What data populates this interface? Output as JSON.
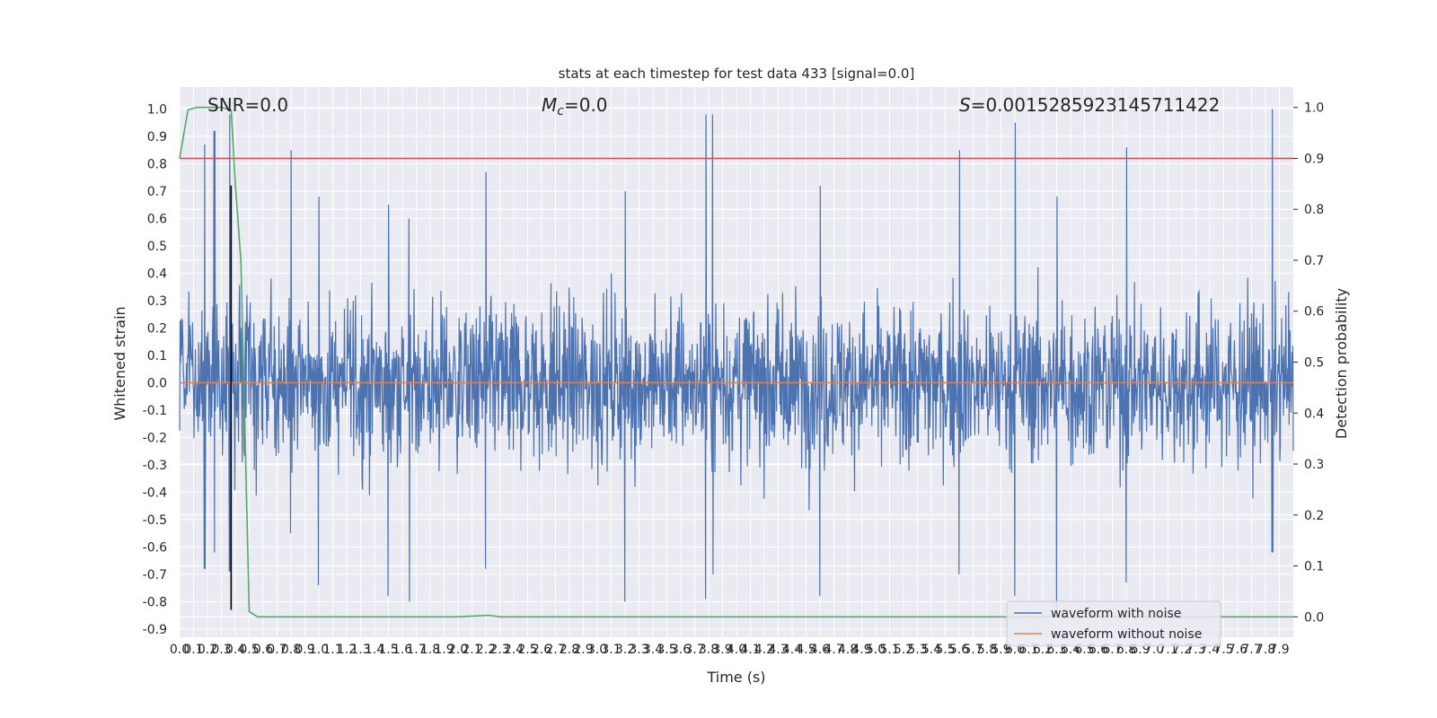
{
  "chart_data": {
    "type": "line",
    "title": "stats at each timestep for test data 433 [signal=0.0]",
    "xlabel": "Time (s)",
    "ylabel": "Whitened strain",
    "y2label": "Detection probability",
    "xlim": [
      0,
      8.0
    ],
    "ylim": [
      -0.93,
      1.08
    ],
    "y2lim": [
      -0.04,
      1.04
    ],
    "x_ticks": [
      0.0,
      0.1,
      0.2,
      0.3,
      0.4,
      0.5,
      0.6,
      0.7,
      0.8,
      0.9,
      1.0,
      1.1,
      1.2,
      1.3,
      1.4,
      1.5,
      1.6,
      1.7,
      1.8,
      1.9,
      2.0,
      2.1,
      2.2,
      2.3,
      2.4,
      2.5,
      2.6,
      2.7,
      2.8,
      2.9,
      3.0,
      3.1,
      3.2,
      3.3,
      3.4,
      3.5,
      3.6,
      3.7,
      3.8,
      3.9,
      4.0,
      4.1,
      4.2,
      4.3,
      4.4,
      4.5,
      4.6,
      4.7,
      4.8,
      4.9,
      5.0,
      5.1,
      5.2,
      5.3,
      5.4,
      5.5,
      5.6,
      5.7,
      5.8,
      5.9,
      6.0,
      6.1,
      6.2,
      6.3,
      6.4,
      6.5,
      6.6,
      6.7,
      6.8,
      6.9,
      7.0,
      7.1,
      7.2,
      7.3,
      7.4,
      7.5,
      7.6,
      7.7,
      7.8,
      7.9
    ],
    "y_ticks": [
      -0.9,
      -0.8,
      -0.7,
      -0.6,
      -0.5,
      -0.4,
      -0.3,
      -0.2,
      -0.1,
      0.0,
      0.1,
      0.2,
      0.3,
      0.4,
      0.5,
      0.6,
      0.7,
      0.8,
      0.9,
      1.0
    ],
    "y2_ticks": [
      0.0,
      0.1,
      0.2,
      0.3,
      0.4,
      0.5,
      0.6,
      0.7,
      0.8,
      0.9,
      1.0
    ],
    "annotations": [
      {
        "text": "SNR=0.0"
      },
      {
        "text_italic": "M",
        "sub": "c",
        "text": "=0.0"
      },
      {
        "text_italic": "S",
        "text": "=0.0015285923145711422"
      }
    ],
    "threshold": {
      "axis": "y2",
      "value": 0.9,
      "color": "#c44e52"
    },
    "vertical_marker": {
      "x": 0.37,
      "y_range": [
        -0.83,
        0.72
      ],
      "color": "#000000"
    },
    "series": [
      {
        "name": "waveform with noise",
        "axis": "y",
        "color": "#4c72b0",
        "note": "dense noise envelope",
        "envelope_peaks": [
          {
            "x": 0.18,
            "max": 0.87,
            "min": -0.68
          },
          {
            "x": 0.25,
            "max": 0.92,
            "min": -0.62
          },
          {
            "x": 0.36,
            "max": 0.98,
            "min": -0.69
          },
          {
            "x": 0.8,
            "max": 0.85,
            "min": -0.55
          },
          {
            "x": 1.0,
            "max": 0.68,
            "min": -0.74
          },
          {
            "x": 1.5,
            "max": 0.65,
            "min": -0.78
          },
          {
            "x": 1.65,
            "max": 0.6,
            "min": -0.8
          },
          {
            "x": 2.2,
            "max": 0.77,
            "min": -0.68
          },
          {
            "x": 3.2,
            "max": 0.7,
            "min": -0.8
          },
          {
            "x": 3.78,
            "max": 0.98,
            "min": -0.79
          },
          {
            "x": 3.83,
            "max": 0.98,
            "min": -0.7
          },
          {
            "x": 4.6,
            "max": 0.72,
            "min": -0.78
          },
          {
            "x": 5.6,
            "max": 0.85,
            "min": -0.7
          },
          {
            "x": 6.0,
            "max": 0.95,
            "min": -0.78
          },
          {
            "x": 6.3,
            "max": 0.68,
            "min": -0.83
          },
          {
            "x": 6.8,
            "max": 0.86,
            "min": -0.73
          },
          {
            "x": 7.85,
            "max": 1.0,
            "min": -0.62
          }
        ],
        "baseline_amplitude": 0.45
      },
      {
        "name": "waveform without noise",
        "axis": "y",
        "color": "#dd8452",
        "constant": 0.0
      },
      {
        "name": "",
        "axis": "y2",
        "color": "#55a868",
        "x": [
          0.0,
          0.06,
          0.12,
          0.2,
          0.3,
          0.37,
          0.4,
          0.44,
          0.5,
          0.56,
          0.6,
          1.0,
          2.0,
          2.22,
          2.3,
          3.0,
          4.0,
          5.0,
          6.0,
          7.0,
          8.0
        ],
        "y": [
          0.9,
          0.995,
          1.0,
          1.0,
          1.0,
          0.995,
          0.85,
          0.7,
          0.01,
          0.0,
          0.0,
          0.0,
          0.0,
          0.003,
          0.0,
          0.0,
          0.0,
          0.0,
          0.0,
          0.0,
          0.0
        ]
      }
    ],
    "legend": {
      "placement": "lower-right",
      "entries": [
        "waveform with noise",
        "waveform without noise"
      ]
    },
    "grid": true,
    "background": "#eaeaf2"
  }
}
